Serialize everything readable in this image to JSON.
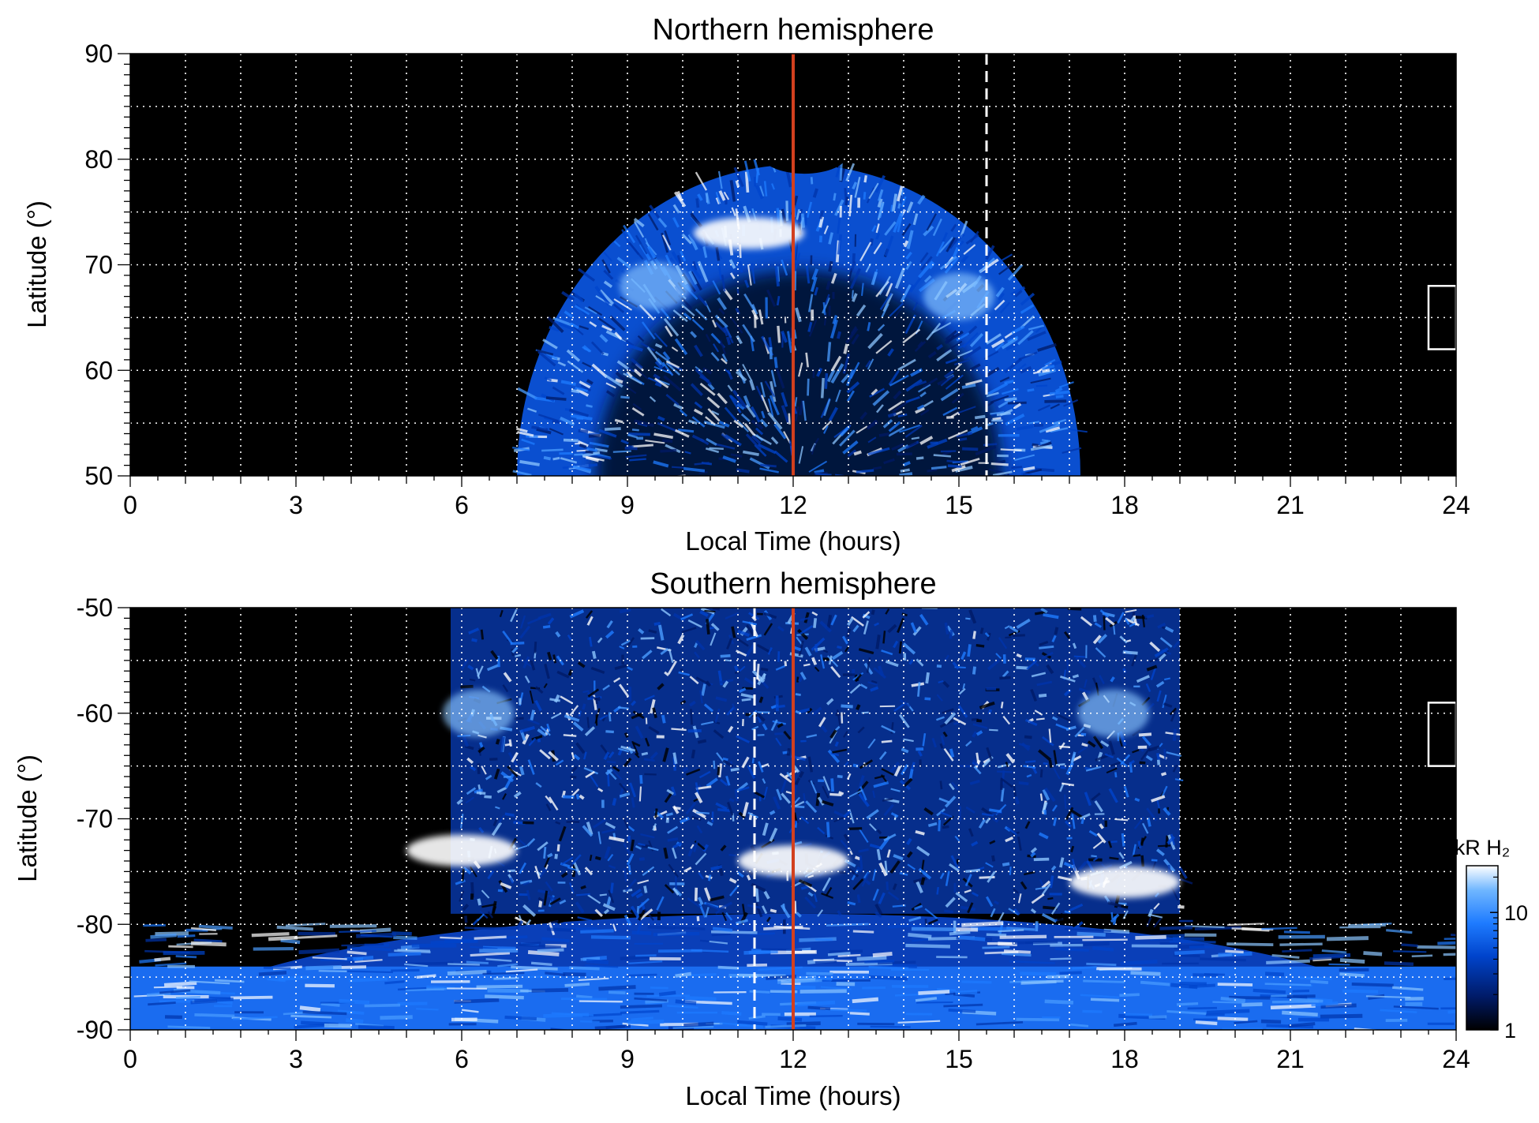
{
  "figure": {
    "colorbar": {
      "label": "kR H₂",
      "ticks": [
        {
          "value": 1,
          "label": "1"
        },
        {
          "value": 10,
          "label": "10"
        }
      ],
      "range": [
        1,
        25
      ],
      "scale": "log",
      "colors": [
        "#000000",
        "#001a66",
        "#0044cc",
        "#1e7bff",
        "#6fb6ff",
        "#ffffff"
      ]
    },
    "accent": {
      "noon_line": "#d2401e",
      "grid": "#ffffff",
      "background": "#000000"
    }
  },
  "chart_data": [
    {
      "type": "heatmap",
      "title": "Northern hemisphere",
      "xlabel": "Local Time (hours)",
      "ylabel": "Latitude (°)",
      "xlim": [
        0,
        24
      ],
      "ylim": [
        50,
        90
      ],
      "xticks": [
        0,
        3,
        6,
        9,
        12,
        15,
        18,
        21,
        24
      ],
      "yticks": [
        50,
        60,
        70,
        80,
        90
      ],
      "grid": true,
      "grid_x_step": 1,
      "grid_y_step": 5,
      "reference_lines": [
        {
          "x": 12,
          "style": "solid",
          "color": "#d2401e"
        },
        {
          "x": 15.5,
          "style": "dashed",
          "color": "#ffffff"
        }
      ],
      "coverage": {
        "lt_min": 7,
        "lt_max": 17.2,
        "lat_max_at_noon": 79.5
      },
      "emission_features": [
        {
          "lt": 11.2,
          "lat": 73,
          "level": "peak"
        },
        {
          "lt": 15.0,
          "lat": 67,
          "level": "bright"
        },
        {
          "lt": 9.5,
          "lat": 68,
          "level": "bright"
        }
      ],
      "marker_box": {
        "lt": [
          23.5,
          24
        ],
        "lat": [
          62,
          68
        ]
      }
    },
    {
      "type": "heatmap",
      "title": "Southern hemisphere",
      "xlabel": "Local Time (hours)",
      "ylabel": "Latitude (°)",
      "xlim": [
        0,
        24
      ],
      "ylim": [
        -90,
        -50
      ],
      "xticks": [
        0,
        3,
        6,
        9,
        12,
        15,
        18,
        21,
        24
      ],
      "yticks": [
        -50,
        -60,
        -70,
        -80,
        -90
      ],
      "grid": true,
      "grid_x_step": 1,
      "grid_y_step": 5,
      "reference_lines": [
        {
          "x": 12,
          "style": "solid",
          "color": "#d2401e"
        },
        {
          "x": 11.3,
          "style": "dashed",
          "color": "#ffffff"
        }
      ],
      "coverage": {
        "lt_min": 0,
        "lt_max": 24
      },
      "emission_features": [
        {
          "lt": 6,
          "lat": -73,
          "level": "peak"
        },
        {
          "lt": 12,
          "lat": -74,
          "level": "peak"
        },
        {
          "lt": 18,
          "lat": -76,
          "level": "peak"
        },
        {
          "lt": 6.3,
          "lat": -60,
          "level": "bright"
        },
        {
          "lt": 17.8,
          "lat": -60,
          "level": "bright"
        }
      ],
      "marker_box": {
        "lt": [
          23.5,
          24
        ],
        "lat": [
          -65,
          -59
        ]
      }
    }
  ]
}
